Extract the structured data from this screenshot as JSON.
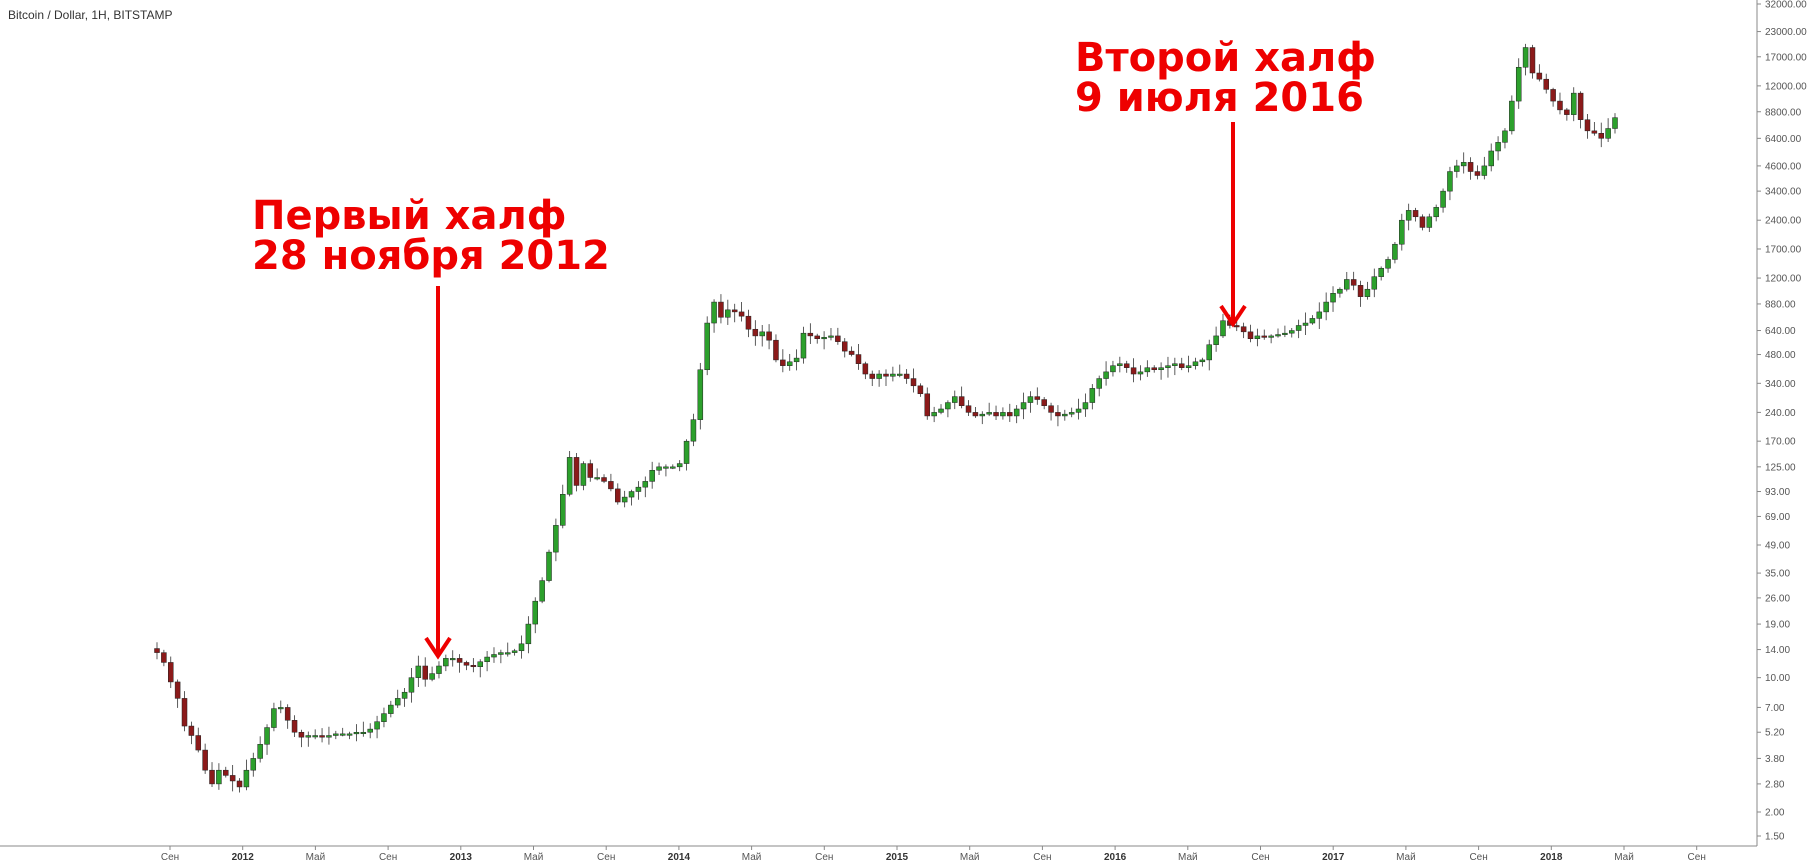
{
  "header": {
    "symbol_title": "Bitcoin / Dollar, 1H, BITSTAMP"
  },
  "annotations": [
    {
      "line1": "Первый халф",
      "line2": "28 ноября 2012"
    },
    {
      "line1": "Второй халф",
      "line2": "9 июля 2016"
    }
  ],
  "colors": {
    "up": "#2ca02c",
    "down": "#8b1a1a",
    "annotation": "#ee0000",
    "axis": "#555555"
  },
  "chart_data": {
    "type": "candlestick",
    "title": "Bitcoin / Dollar, 1H, BITSTAMP",
    "yscale": "log",
    "ylim": [
      1.3,
      34000
    ],
    "y_tick_labels": [
      "32000.00",
      "23000.00",
      "17000.00",
      "12000.00",
      "8800.00",
      "6400.00",
      "4600.00",
      "3400.00",
      "2400.00",
      "1700.00",
      "1200.00",
      "880.00",
      "640.00",
      "480.00",
      "340.00",
      "240.00",
      "170.00",
      "125.00",
      "93.00",
      "69.00",
      "49.00",
      "35.00",
      "26.00",
      "19.00",
      "14.00",
      "10.00",
      "7.00",
      "5.20",
      "3.80",
      "2.80",
      "2.00",
      "1.50"
    ],
    "x_tick_labels": [
      {
        "label": "Сен",
        "bold": false
      },
      {
        "label": "2012",
        "bold": true
      },
      {
        "label": "Май",
        "bold": false
      },
      {
        "label": "Сен",
        "bold": false
      },
      {
        "label": "2013",
        "bold": true
      },
      {
        "label": "Май",
        "bold": false
      },
      {
        "label": "Сен",
        "bold": false
      },
      {
        "label": "2014",
        "bold": true
      },
      {
        "label": "Май",
        "bold": false
      },
      {
        "label": "Сен",
        "bold": false
      },
      {
        "label": "2015",
        "bold": true
      },
      {
        "label": "Май",
        "bold": false
      },
      {
        "label": "Сен",
        "bold": false
      },
      {
        "label": "2016",
        "bold": true
      },
      {
        "label": "Май",
        "bold": false
      },
      {
        "label": "Сен",
        "bold": false
      },
      {
        "label": "2017",
        "bold": true
      },
      {
        "label": "Май",
        "bold": false
      },
      {
        "label": "Сен",
        "bold": false
      },
      {
        "label": "2018",
        "bold": true
      },
      {
        "label": "Май",
        "bold": false
      },
      {
        "label": "Сен",
        "bold": false
      }
    ],
    "closes": [
      13.5,
      12.0,
      9.5,
      7.8,
      5.6,
      5.0,
      4.2,
      3.3,
      2.8,
      3.3,
      3.1,
      2.9,
      2.7,
      3.3,
      3.8,
      4.5,
      5.5,
      6.9,
      7.0,
      6.0,
      5.2,
      4.9,
      5.0,
      5.0,
      4.9,
      5.0,
      5.1,
      5.1,
      5.1,
      5.2,
      5.2,
      5.4,
      5.9,
      6.5,
      7.2,
      7.8,
      8.4,
      10.0,
      11.5,
      9.8,
      10.5,
      11.5,
      12.6,
      12.6,
      12.0,
      11.6,
      11.4,
      12.1,
      12.8,
      13.2,
      13.5,
      13.5,
      13.8,
      15.0,
      19.0,
      25.0,
      32.0,
      45.0,
      62.0,
      90.0,
      140.0,
      100.0,
      130.0,
      110.0,
      110.0,
      105.0,
      96.0,
      82.0,
      87.0,
      93.0,
      98.0,
      105.0,
      120.0,
      125.0,
      125.0,
      125.0,
      130.0,
      170.0,
      220.0,
      400.0,
      700.0,
      900.0,
      750.0,
      820.0,
      800.0,
      760.0,
      650.0,
      600.0,
      630.0,
      570.0,
      450.0,
      420.0,
      440.0,
      460.0,
      620.0,
      600.0,
      580.0,
      590.0,
      600.0,
      560.0,
      500.0,
      480.0,
      430.0,
      380.0,
      360.0,
      380.0,
      370.0,
      380.0,
      380.0,
      360.0,
      330.0,
      300.0,
      230.0,
      240.0,
      250.0,
      270.0,
      290.0,
      260.0,
      240.0,
      230.0,
      235.0,
      240.0,
      230.0,
      240.0,
      230.0,
      250.0,
      270.0,
      290.0,
      280.0,
      260.0,
      240.0,
      230.0,
      235.0,
      240.0,
      250.0,
      270.0,
      320.0,
      360.0,
      390.0,
      420.0,
      430.0,
      410.0,
      380.0,
      390.0,
      410.0,
      400.0,
      410.0,
      420.0,
      430.0,
      410.0,
      420.0,
      440.0,
      450.0,
      540.0,
      600.0,
      720.0,
      680.0,
      670.0,
      630.0,
      580.0,
      600.0,
      590.0,
      600.0,
      610.0,
      620.0,
      640.0,
      680.0,
      700.0,
      740.0,
      800.0,
      900.0,
      1000.0,
      1050.0,
      1180.0,
      1100.0,
      960.0,
      1050.0,
      1220.0,
      1350.0,
      1500.0,
      1800.0,
      2400.0,
      2700.0,
      2500.0,
      2200.0,
      2500.0,
      2800.0,
      3400.0,
      4300.0,
      4600.0,
      4800.0,
      4300.0,
      4100.0,
      4600.0,
      5500.0,
      6100.0,
      7000.0,
      10000.0,
      15000.0,
      19000.0,
      14000.0,
      13000.0,
      11500.0,
      10000.0,
      9000.0,
      8500.0,
      11000.0,
      8000.0,
      7000.0,
      6800.0,
      6400.0,
      7200.0,
      8200.0
    ]
  }
}
